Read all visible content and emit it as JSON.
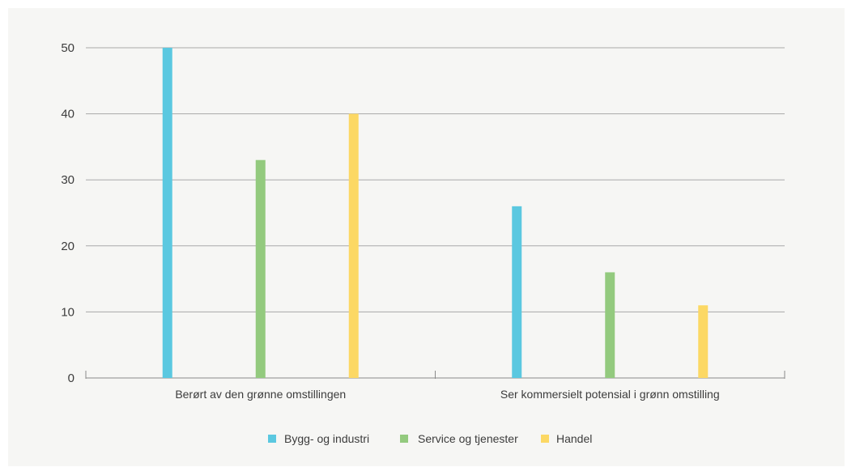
{
  "chart_data": {
    "type": "bar",
    "categories": [
      "Berørt av den grønne omstillingen",
      "Ser kommersielt potensial i grønn omstilling"
    ],
    "series": [
      {
        "name": "Bygg- og industri",
        "values": [
          50,
          26
        ],
        "color": "#5bc8e0"
      },
      {
        "name": "Service og tjenester",
        "values": [
          33,
          16
        ],
        "color": "#93ca7e"
      },
      {
        "name": "Handel",
        "values": [
          40,
          11
        ],
        "color": "#fcd864"
      }
    ],
    "yticks": [
      0,
      10,
      20,
      30,
      40,
      50
    ],
    "ylim": [
      0,
      50
    ],
    "grid": true,
    "legend_position": "bottom"
  }
}
